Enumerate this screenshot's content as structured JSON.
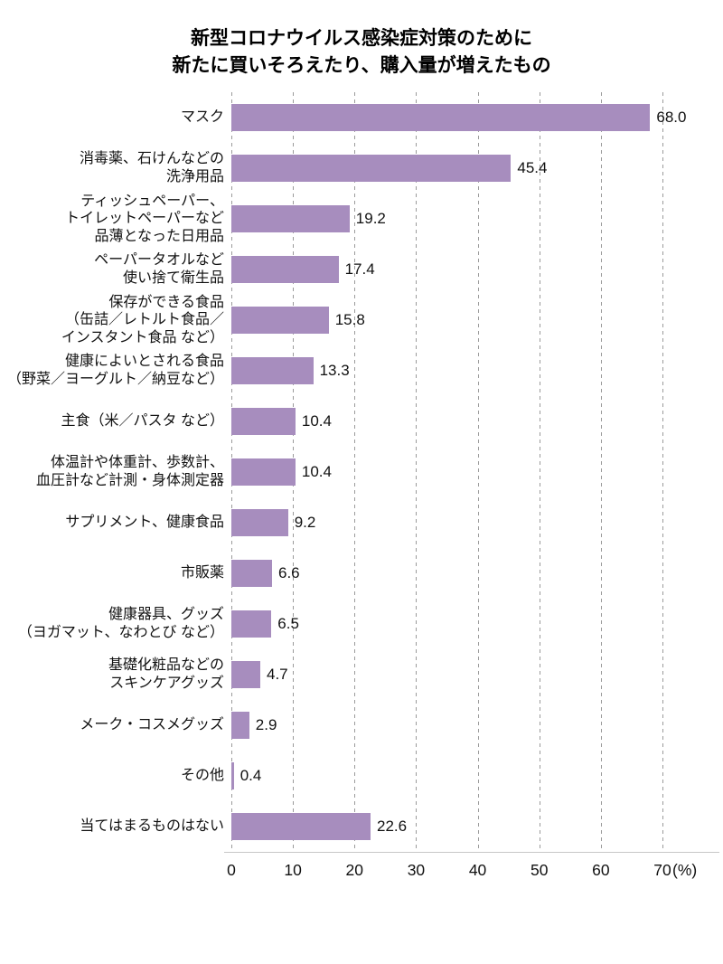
{
  "chart_data": {
    "type": "bar",
    "orientation": "horizontal",
    "title": "新型コロナウイルス感染症対策のために\n新たに買いそろえたり、購入量が増えたもの",
    "xlabel": "",
    "ylabel": "",
    "xlim": [
      0,
      70
    ],
    "x_tick_labels": [
      "0",
      "10",
      "20",
      "30",
      "40",
      "50",
      "60",
      "70"
    ],
    "x_unit_label": "(%)",
    "grid": "vertical-dashed",
    "legend": "none",
    "bar_color": "#a78dbe",
    "gridline_color": "#9a9a9a",
    "categories": [
      "マスク",
      "消毒薬、石けんなどの\n洗浄用品",
      "ティッシュペーパー、\nトイレットペーパーなど\n品薄となった日用品",
      "ペーパータオルなど\n使い捨て衛生品",
      "保存ができる食品\n（缶詰／レトルト食品／\nインスタント食品 など）",
      "健康によいとされる食品\n（野菜／ヨーグルト／納豆など）",
      "主食（米／パスタ など）",
      "体温計や体重計、歩数計、\n血圧計など計測・身体測定器",
      "サプリメント、健康食品",
      "市販薬",
      "健康器具、グッズ\n（ヨガマット、なわとび など）",
      "基礎化粧品などの\nスキンケアグッズ",
      "メーク・コスメグッズ",
      "その他",
      "当てはまるものはない"
    ],
    "values": [
      68.0,
      45.4,
      19.2,
      17.4,
      15.8,
      13.3,
      10.4,
      10.4,
      9.2,
      6.6,
      6.5,
      4.7,
      2.9,
      0.4,
      22.6
    ],
    "value_labels": [
      "68.0",
      "45.4",
      "19.2",
      "17.4",
      "15.8",
      "13.3",
      "10.4",
      "10.4",
      "9.2",
      "6.6",
      "6.5",
      "4.7",
      "2.9",
      "0.4",
      "22.6"
    ]
  }
}
